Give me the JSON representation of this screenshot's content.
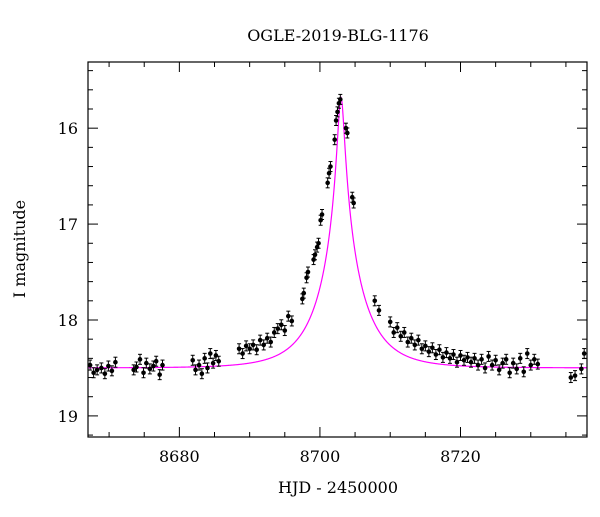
{
  "chart_data": {
    "type": "scatter",
    "title": "OGLE-2019-BLG-1176",
    "xlabel": "HJD - 2450000",
    "ylabel": "I magnitude",
    "xlim": [
      8667,
      8738
    ],
    "ylim": [
      19.22,
      15.31
    ],
    "y_inverted": true,
    "x_ticks": [
      8680,
      8700,
      8720
    ],
    "y_ticks": [
      16,
      17,
      18,
      19
    ],
    "grid": false,
    "colors": {
      "points": "#000000",
      "model": "#ff00ff",
      "frame": "#000000"
    },
    "model": {
      "name": "",
      "description_shape": "magenta microlensing model curve",
      "baseline": 18.5,
      "peak_time": 8703.0,
      "peak_mag": 15.68,
      "tE": 6.0
    },
    "series": [
      {
        "name": "",
        "points": [
          {
            "x": 8667.3,
            "y": 18.47
          },
          {
            "x": 8667.8,
            "y": 18.55
          },
          {
            "x": 8668.3,
            "y": 18.52
          },
          {
            "x": 8668.9,
            "y": 18.5
          },
          {
            "x": 8669.4,
            "y": 18.56
          },
          {
            "x": 8669.9,
            "y": 18.48
          },
          {
            "x": 8670.4,
            "y": 18.53
          },
          {
            "x": 8670.9,
            "y": 18.44
          },
          {
            "x": 8673.5,
            "y": 18.52
          },
          {
            "x": 8673.9,
            "y": 18.49
          },
          {
            "x": 8674.4,
            "y": 18.41
          },
          {
            "x": 8674.9,
            "y": 18.55
          },
          {
            "x": 8675.3,
            "y": 18.45
          },
          {
            "x": 8675.8,
            "y": 18.51
          },
          {
            "x": 8676.3,
            "y": 18.48
          },
          {
            "x": 8676.7,
            "y": 18.43
          },
          {
            "x": 8677.2,
            "y": 18.57
          },
          {
            "x": 8677.6,
            "y": 18.47
          },
          {
            "x": 8681.9,
            "y": 18.42
          },
          {
            "x": 8682.3,
            "y": 18.52
          },
          {
            "x": 8682.8,
            "y": 18.47
          },
          {
            "x": 8683.2,
            "y": 18.56
          },
          {
            "x": 8683.6,
            "y": 18.4
          },
          {
            "x": 8684.0,
            "y": 18.5
          },
          {
            "x": 8684.4,
            "y": 18.35
          },
          {
            "x": 8684.8,
            "y": 18.45
          },
          {
            "x": 8685.2,
            "y": 18.37
          },
          {
            "x": 8685.6,
            "y": 18.43
          },
          {
            "x": 8688.5,
            "y": 18.3
          },
          {
            "x": 8689.0,
            "y": 18.35
          },
          {
            "x": 8689.5,
            "y": 18.27
          },
          {
            "x": 8690.0,
            "y": 18.3
          },
          {
            "x": 8690.5,
            "y": 18.26
          },
          {
            "x": 8691.0,
            "y": 18.31
          },
          {
            "x": 8691.5,
            "y": 18.21
          },
          {
            "x": 8692.0,
            "y": 18.26
          },
          {
            "x": 8692.5,
            "y": 18.19
          },
          {
            "x": 8693.0,
            "y": 18.23
          },
          {
            "x": 8693.5,
            "y": 18.13
          },
          {
            "x": 8694.0,
            "y": 18.09
          },
          {
            "x": 8694.5,
            "y": 18.05
          },
          {
            "x": 8695.0,
            "y": 18.11
          },
          {
            "x": 8695.5,
            "y": 17.96
          },
          {
            "x": 8696.0,
            "y": 18.01
          },
          {
            "x": 8697.5,
            "y": 17.78
          },
          {
            "x": 8697.7,
            "y": 17.72
          },
          {
            "x": 8698.1,
            "y": 17.56
          },
          {
            "x": 8698.3,
            "y": 17.5
          },
          {
            "x": 8699.1,
            "y": 17.37
          },
          {
            "x": 8699.3,
            "y": 17.32
          },
          {
            "x": 8699.6,
            "y": 17.24
          },
          {
            "x": 8699.8,
            "y": 17.2
          },
          {
            "x": 8700.1,
            "y": 16.96
          },
          {
            "x": 8700.3,
            "y": 16.9
          },
          {
            "x": 8701.1,
            "y": 16.57
          },
          {
            "x": 8701.3,
            "y": 16.47
          },
          {
            "x": 8701.5,
            "y": 16.4
          },
          {
            "x": 8702.1,
            "y": 16.12
          },
          {
            "x": 8702.3,
            "y": 15.92
          },
          {
            "x": 8702.5,
            "y": 15.83
          },
          {
            "x": 8702.7,
            "y": 15.74
          },
          {
            "x": 8702.9,
            "y": 15.7
          },
          {
            "x": 8703.7,
            "y": 16.0
          },
          {
            "x": 8703.9,
            "y": 16.05
          },
          {
            "x": 8704.6,
            "y": 16.72
          },
          {
            "x": 8704.8,
            "y": 16.78
          },
          {
            "x": 8707.8,
            "y": 17.8
          },
          {
            "x": 8708.4,
            "y": 17.9
          },
          {
            "x": 8710.0,
            "y": 18.02
          },
          {
            "x": 8710.5,
            "y": 18.13
          },
          {
            "x": 8711.0,
            "y": 18.08
          },
          {
            "x": 8711.5,
            "y": 18.17
          },
          {
            "x": 8712.0,
            "y": 18.13
          },
          {
            "x": 8712.5,
            "y": 18.23
          },
          {
            "x": 8713.0,
            "y": 18.19
          },
          {
            "x": 8713.5,
            "y": 18.26
          },
          {
            "x": 8714.0,
            "y": 18.21
          },
          {
            "x": 8714.5,
            "y": 18.3
          },
          {
            "x": 8715.0,
            "y": 18.27
          },
          {
            "x": 8715.5,
            "y": 18.33
          },
          {
            "x": 8716.0,
            "y": 18.29
          },
          {
            "x": 8716.5,
            "y": 18.36
          },
          {
            "x": 8717.0,
            "y": 18.31
          },
          {
            "x": 8717.5,
            "y": 18.39
          },
          {
            "x": 8718.0,
            "y": 18.34
          },
          {
            "x": 8718.5,
            "y": 18.4
          },
          {
            "x": 8719.0,
            "y": 18.36
          },
          {
            "x": 8719.5,
            "y": 18.44
          },
          {
            "x": 8720.0,
            "y": 18.37
          },
          {
            "x": 8720.5,
            "y": 18.42
          },
          {
            "x": 8721.0,
            "y": 18.39
          },
          {
            "x": 8721.5,
            "y": 18.44
          },
          {
            "x": 8722.0,
            "y": 18.4
          },
          {
            "x": 8722.5,
            "y": 18.47
          },
          {
            "x": 8723.0,
            "y": 18.41
          },
          {
            "x": 8723.5,
            "y": 18.5
          },
          {
            "x": 8724.0,
            "y": 18.38
          },
          {
            "x": 8724.5,
            "y": 18.47
          },
          {
            "x": 8725.0,
            "y": 18.42
          },
          {
            "x": 8725.5,
            "y": 18.52
          },
          {
            "x": 8726.0,
            "y": 18.45
          },
          {
            "x": 8726.5,
            "y": 18.41
          },
          {
            "x": 8727.0,
            "y": 18.55
          },
          {
            "x": 8727.5,
            "y": 18.45
          },
          {
            "x": 8728.0,
            "y": 18.51
          },
          {
            "x": 8728.5,
            "y": 18.4
          },
          {
            "x": 8729.0,
            "y": 18.54
          },
          {
            "x": 8729.5,
            "y": 18.35
          },
          {
            "x": 8730.0,
            "y": 18.47
          },
          {
            "x": 8730.5,
            "y": 18.41
          },
          {
            "x": 8731.0,
            "y": 18.46
          },
          {
            "x": 8735.7,
            "y": 18.6
          },
          {
            "x": 8736.3,
            "y": 18.58
          },
          {
            "x": 8737.2,
            "y": 18.51
          },
          {
            "x": 8737.6,
            "y": 18.35
          }
        ]
      }
    ]
  }
}
